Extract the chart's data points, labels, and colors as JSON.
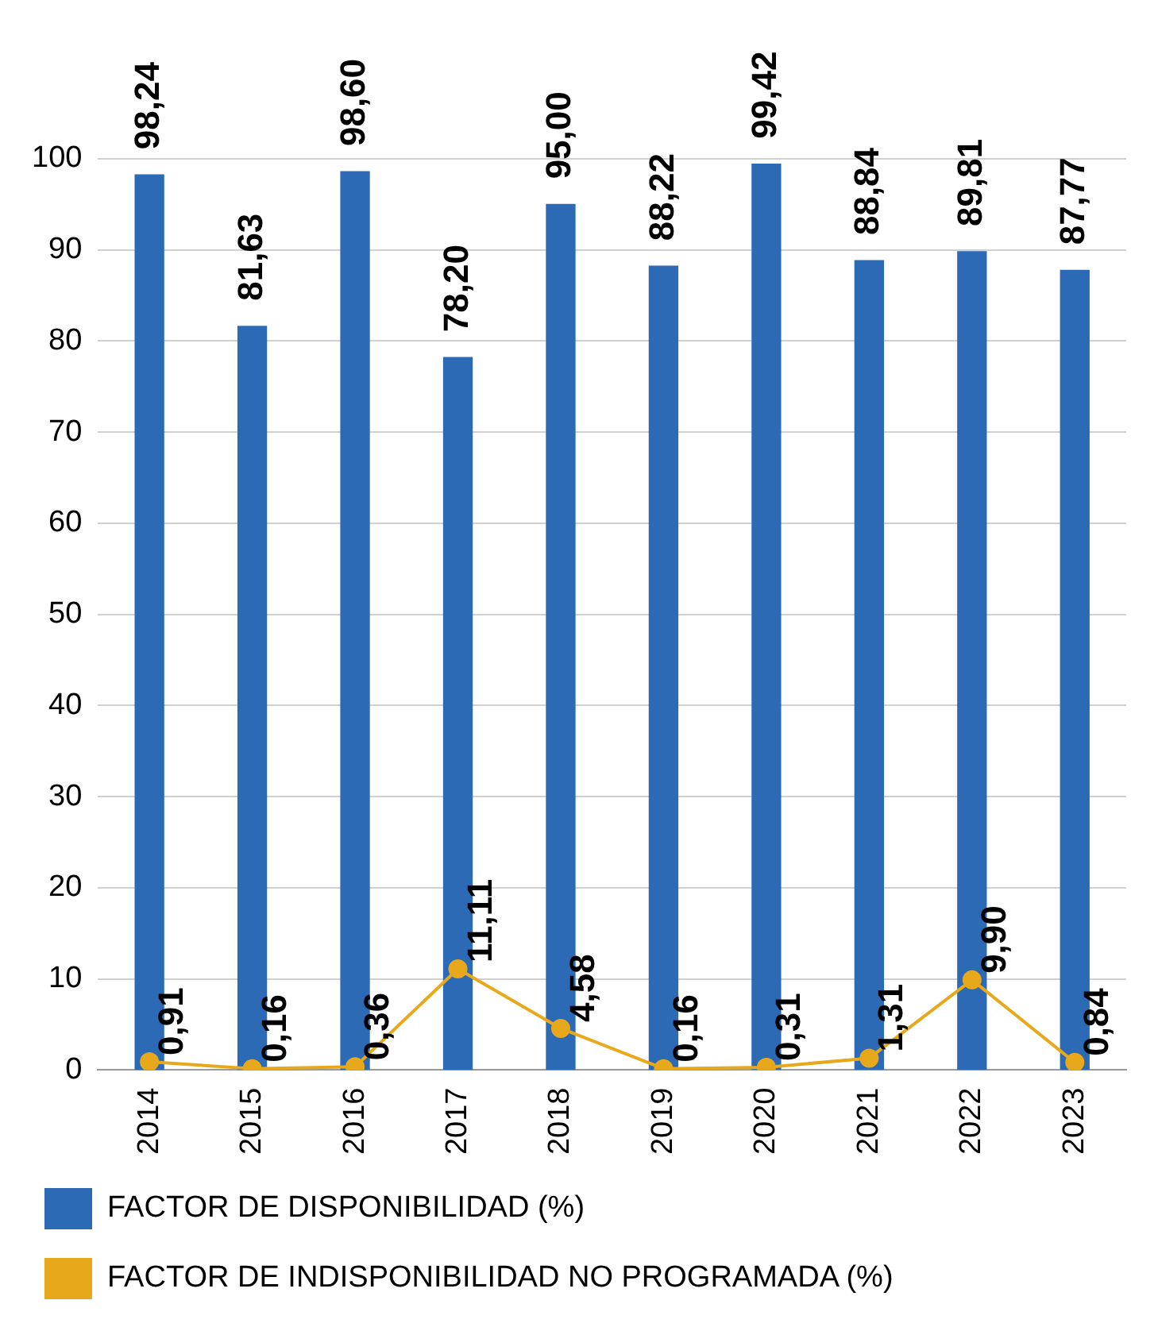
{
  "chart_data": {
    "type": "bar",
    "categories": [
      "2014",
      "2015",
      "2016",
      "2017",
      "2018",
      "2019",
      "2020",
      "2021",
      "2022",
      "2023"
    ],
    "series": [
      {
        "name": "FACTOR DE DISPONIBILIDAD (%)",
        "color": "#2d6ab5",
        "values": [
          98.24,
          81.63,
          98.6,
          78.2,
          95.0,
          88.22,
          99.42,
          88.84,
          89.81,
          87.77
        ],
        "value_labels": [
          "98,24",
          "81,63",
          "98,60",
          "78,20",
          "95,00",
          "88,22",
          "99,42",
          "88,84",
          "89,81",
          "87,77"
        ]
      },
      {
        "name": "FACTOR DE INDISPONIBILIDAD NO PROGRAMADA (%)",
        "type": "line",
        "color": "#e8a81c",
        "values": [
          0.91,
          0.16,
          0.36,
          11.11,
          4.58,
          0.16,
          0.31,
          1.31,
          9.9,
          0.84
        ],
        "value_labels": [
          "0,91",
          "0,16",
          "0,36",
          "11,11",
          "4,58",
          "0,16",
          "0,31",
          "1,31",
          "9,90",
          "0,84"
        ]
      }
    ],
    "ylim": [
      0,
      100
    ],
    "yticks": [
      0,
      10,
      20,
      30,
      40,
      50,
      60,
      70,
      80,
      90,
      100
    ],
    "grid": "y",
    "legend": "bottom left",
    "marker": "circle",
    "line_style": "solid"
  }
}
